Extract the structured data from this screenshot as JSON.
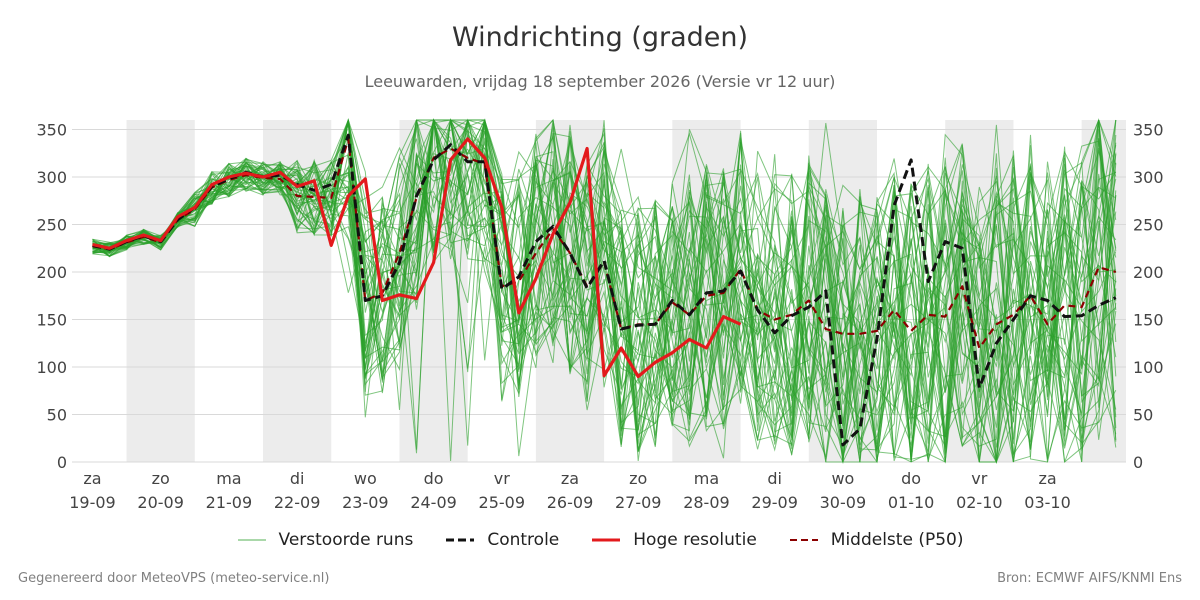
{
  "title": "Windrichting (graden)",
  "subtitle": "Leeuwarden, vrijdag 18 september 2026 (Versie vr 12 uur)",
  "footer": {
    "left": "Gegenereerd door MeteoVPS (meteo-service.nl)",
    "right": "Bron: ECMWF AIFS/KNMI Ens"
  },
  "legend": [
    {
      "label": "Verstoorde runs",
      "color": "#2ca02c",
      "style": "thin"
    },
    {
      "label": "Controle",
      "color": "#111111",
      "style": "dashed"
    },
    {
      "label": "Hoge resolutie",
      "color": "#e31a1c",
      "style": "solid"
    },
    {
      "label": "Middelste (P50)",
      "color": "#8b0000",
      "style": "dashed"
    }
  ],
  "chart_data": {
    "type": "line",
    "x_unit": "days since 18-09 12:00",
    "xlim": [
      -0.3,
      15.15
    ],
    "ylim": [
      0,
      360
    ],
    "y_ticks": [
      0,
      50,
      100,
      150,
      200,
      250,
      300,
      350
    ],
    "grid": true,
    "legend_position": "bottom",
    "x_ticks": [
      {
        "day": "za",
        "date": "19-09"
      },
      {
        "day": "zo",
        "date": "20-09"
      },
      {
        "day": "ma",
        "date": "21-09"
      },
      {
        "day": "di",
        "date": "22-09"
      },
      {
        "day": "wo",
        "date": "23-09"
      },
      {
        "day": "do",
        "date": "24-09"
      },
      {
        "day": "vr",
        "date": "25-09"
      },
      {
        "day": "za",
        "date": "26-09"
      },
      {
        "day": "zo",
        "date": "27-09"
      },
      {
        "day": "ma",
        "date": "28-09"
      },
      {
        "day": "di",
        "date": "29-09"
      },
      {
        "day": "wo",
        "date": "30-09"
      },
      {
        "day": "do",
        "date": "01-10"
      },
      {
        "day": "vr",
        "date": "02-10"
      },
      {
        "day": "za",
        "date": "03-10"
      }
    ],
    "weekend_bands": [
      [
        0.5,
        1.5
      ],
      [
        2.5,
        3.5
      ],
      [
        4.5,
        5.5
      ],
      [
        6.5,
        7.5
      ],
      [
        8.5,
        9.5
      ],
      [
        10.5,
        11.5
      ],
      [
        12.5,
        13.5
      ],
      [
        14.5,
        15.15
      ]
    ],
    "ensemble_count": 50,
    "series": [
      {
        "name": "Controle",
        "color": "#111111",
        "x": [
          0,
          0.25,
          0.5,
          0.75,
          1,
          1.25,
          1.5,
          1.75,
          2,
          2.25,
          2.5,
          2.75,
          3,
          3.25,
          3.5,
          3.75,
          4,
          4.25,
          4.5,
          4.75,
          5,
          5.25,
          5.5,
          5.75,
          6,
          6.25,
          6.5,
          6.75,
          7,
          7.25,
          7.5,
          7.75,
          8,
          8.25,
          8.5,
          8.75,
          9,
          9.25,
          9.5,
          9.75,
          10,
          10.25,
          10.5,
          10.75,
          11,
          11.25,
          11.5,
          11.75,
          12,
          12.25,
          12.5,
          12.75,
          13,
          13.25,
          13.5,
          13.75,
          14,
          14.25,
          14.5,
          14.75,
          15
        ],
        "values": [
          228,
          224,
          232,
          238,
          232,
          255,
          268,
          290,
          298,
          305,
          300,
          302,
          292,
          286,
          292,
          344,
          170,
          175,
          210,
          280,
          318,
          334,
          316,
          316,
          182,
          195,
          232,
          248,
          220,
          183,
          212,
          140,
          144,
          145,
          170,
          155,
          178,
          180,
          201,
          160,
          136,
          154,
          163,
          180,
          18,
          35,
          130,
          270,
          318,
          190,
          232,
          225,
          78,
          125,
          150,
          175,
          170,
          153,
          154,
          165,
          173
        ]
      },
      {
        "name": "Hoge resolutie",
        "color": "#e31a1c",
        "x": [
          0,
          0.25,
          0.5,
          0.75,
          1,
          1.25,
          1.5,
          1.75,
          2,
          2.25,
          2.5,
          2.75,
          3,
          3.25,
          3.5,
          3.75,
          4,
          4.25,
          4.5,
          4.75,
          5,
          5.25,
          5.5,
          5.75,
          6,
          6.25,
          6.5,
          6.75,
          7,
          7.25,
          7.5,
          7.75,
          8,
          8.25,
          8.5,
          8.75,
          9,
          9.25,
          9.5
        ],
        "values": [
          229,
          225,
          233,
          239,
          233,
          258,
          268,
          292,
          300,
          304,
          300,
          305,
          290,
          296,
          228,
          280,
          298,
          170,
          176,
          172,
          210,
          318,
          340,
          320,
          268,
          157,
          193,
          240,
          273,
          330,
          91,
          120,
          90,
          105,
          115,
          129,
          120,
          153,
          145
        ]
      },
      {
        "name": "Middelste (P50)",
        "color": "#8b0000",
        "x": [
          0,
          0.25,
          0.5,
          0.75,
          1,
          1.25,
          1.5,
          1.75,
          2,
          2.25,
          2.5,
          2.75,
          3,
          3.25,
          3.5,
          3.75,
          4,
          4.25,
          4.5,
          4.75,
          5,
          5.25,
          5.5,
          5.75,
          6,
          6.25,
          6.5,
          6.75,
          7,
          7.25,
          7.5,
          7.75,
          8,
          8.25,
          8.5,
          8.75,
          9,
          9.25,
          9.5,
          9.75,
          10,
          10.25,
          10.5,
          10.75,
          11,
          11.25,
          11.5,
          11.75,
          12,
          12.25,
          12.5,
          12.75,
          13,
          13.25,
          13.5,
          13.75,
          14,
          14.25,
          14.5,
          14.75,
          15
        ],
        "values": [
          227,
          224,
          231,
          237,
          231,
          255,
          266,
          289,
          297,
          302,
          299,
          298,
          280,
          279,
          278,
          340,
          170,
          178,
          220,
          278,
          320,
          330,
          320,
          314,
          185,
          190,
          220,
          245,
          220,
          185,
          210,
          140,
          145,
          145,
          168,
          155,
          175,
          178,
          203,
          160,
          150,
          155,
          170,
          140,
          135,
          135,
          138,
          160,
          138,
          155,
          153,
          185,
          120,
          145,
          155,
          175,
          145,
          165,
          163,
          205,
          200
        ]
      }
    ]
  }
}
